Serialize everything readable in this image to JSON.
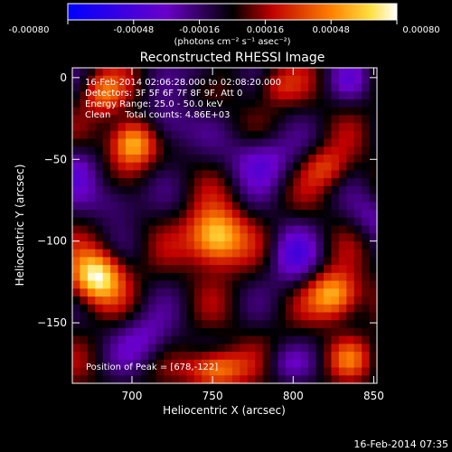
{
  "colors": {
    "background": "#000000",
    "text": "#ffffff"
  },
  "chart_data": {
    "type": "heatmap",
    "title": "Reconstructed RHESSI Image",
    "xlabel": "Heliocentric X (arcsec)",
    "ylabel": "Heliocentric Y (arcsec)",
    "xlim": [
      663,
      852
    ],
    "ylim": [
      -187,
      6
    ],
    "xticks": [
      700,
      750,
      800,
      850
    ],
    "yticks": [
      0,
      -50,
      -100,
      -150
    ],
    "colorbar": {
      "range": [
        -0.0008,
        0.0008
      ],
      "tick_labels": [
        "-0.00080",
        "-0.00048",
        "-0.00016",
        "0.00016",
        "0.00048",
        "0.00080"
      ],
      "unit_label": "(photons cm⁻² s⁻¹ asec⁻²)"
    },
    "info_lines": [
      "16-Feb-2014 02:06:28.000 to 02:08:20.000",
      "Detectors: 3F 5F 6F 7F 8F 9F, Att 0",
      "Energy Range: 25.0 - 50.0 keV",
      "Clean     Total counts: 4.86E+03"
    ],
    "peak_label": "Position of Peak = [678,-122]",
    "sources": [
      {
        "x": 678,
        "y": -122,
        "value": 0.0008,
        "sx": 11,
        "sy": 11
      },
      {
        "x": 700,
        "y": -40,
        "value": 0.00072,
        "sx": 10,
        "sy": 10
      },
      {
        "x": 752,
        "y": -98,
        "value": 0.00078,
        "sx": 12,
        "sy": 12
      },
      {
        "x": 826,
        "y": -133,
        "value": 0.00066,
        "sx": 11,
        "sy": 10
      },
      {
        "x": 752,
        "y": -178,
        "value": 0.00058,
        "sx": 12,
        "sy": 8
      },
      {
        "x": 682,
        "y": -10,
        "value": 0.0004,
        "sx": 9,
        "sy": 9
      },
      {
        "x": 820,
        "y": -55,
        "value": 0.00032,
        "sx": 10,
        "sy": 9
      },
      {
        "x": 790,
        "y": -5,
        "value": 0.00025,
        "sx": 10,
        "sy": 8
      },
      {
        "x": 835,
        "y": -172,
        "value": 0.0003,
        "sx": 9,
        "sy": 8
      },
      {
        "x": 722,
        "y": -30,
        "value": -0.00035,
        "sx": 12,
        "sy": 12
      },
      {
        "x": 665,
        "y": -55,
        "value": -0.0003,
        "sx": 10,
        "sy": 12
      },
      {
        "x": 690,
        "y": -75,
        "value": -0.00028,
        "sx": 12,
        "sy": 10
      },
      {
        "x": 780,
        "y": -50,
        "value": -0.0004,
        "sx": 14,
        "sy": 12
      },
      {
        "x": 800,
        "y": -110,
        "value": -0.00036,
        "sx": 11,
        "sy": 14
      },
      {
        "x": 708,
        "y": -160,
        "value": -0.00032,
        "sx": 14,
        "sy": 12
      },
      {
        "x": 850,
        "y": -85,
        "value": -0.00026,
        "sx": 10,
        "sy": 10
      },
      {
        "x": 835,
        "y": 0,
        "value": -0.00022,
        "sx": 10,
        "sy": 10
      },
      {
        "x": 795,
        "y": -175,
        "value": -0.0002,
        "sx": 10,
        "sy": 8
      },
      {
        "x": 745,
        "y": 3,
        "value": -0.00022,
        "sx": 10,
        "sy": 8
      }
    ]
  },
  "footer": {
    "date": "16-Feb-2014 07:35"
  }
}
